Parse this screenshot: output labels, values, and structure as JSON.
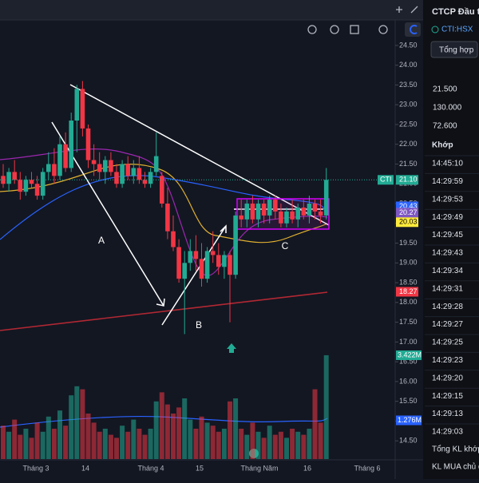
{
  "chart_data": {
    "type": "candlestick",
    "up_color": "#22ab94",
    "down_color": "#f23645",
    "candles": [
      [
        21.2,
        21.5,
        20.9,
        21.0
      ],
      [
        21.0,
        21.4,
        20.8,
        21.3
      ],
      [
        21.3,
        21.6,
        21.0,
        21.1
      ],
      [
        21.1,
        21.3,
        20.6,
        20.8
      ],
      [
        20.8,
        21.2,
        20.7,
        21.1
      ],
      [
        21.1,
        21.3,
        20.9,
        21.0
      ],
      [
        21.0,
        21.2,
        20.6,
        20.7
      ],
      [
        20.7,
        21.4,
        20.6,
        21.3
      ],
      [
        21.3,
        21.8,
        21.1,
        21.5
      ],
      [
        21.5,
        21.9,
        21.0,
        21.2
      ],
      [
        21.2,
        22.2,
        21.1,
        22.0
      ],
      [
        22.0,
        22.3,
        21.3,
        21.4
      ],
      [
        21.4,
        22.8,
        21.3,
        22.6
      ],
      [
        22.6,
        23.5,
        21.8,
        23.4
      ],
      [
        23.4,
        23.6,
        22.2,
        22.4
      ],
      [
        22.4,
        22.5,
        21.4,
        21.6
      ],
      [
        21.6,
        22.0,
        21.2,
        21.5
      ],
      [
        21.5,
        21.8,
        21.1,
        21.3
      ],
      [
        21.3,
        21.7,
        21.0,
        21.6
      ],
      [
        21.6,
        21.8,
        21.2,
        21.3
      ],
      [
        21.3,
        21.5,
        20.9,
        21.0
      ],
      [
        21.0,
        21.6,
        20.9,
        21.5
      ],
      [
        21.5,
        21.7,
        21.1,
        21.2
      ],
      [
        21.2,
        21.6,
        21.0,
        21.4
      ],
      [
        21.4,
        21.7,
        21.0,
        21.1
      ],
      [
        21.1,
        21.3,
        20.9,
        21.0
      ],
      [
        21.0,
        21.4,
        20.9,
        21.3
      ],
      [
        21.3,
        22.3,
        21.2,
        21.7
      ],
      [
        21.2,
        21.3,
        20.4,
        20.5
      ],
      [
        20.5,
        20.9,
        19.6,
        19.8
      ],
      [
        19.8,
        20.2,
        19.3,
        19.4
      ],
      [
        19.4,
        19.6,
        18.5,
        18.6
      ],
      [
        18.6,
        19.3,
        17.2,
        19.0
      ],
      [
        19.0,
        19.6,
        18.8,
        19.3
      ],
      [
        19.3,
        19.7,
        18.8,
        19.1
      ],
      [
        19.1,
        19.5,
        18.4,
        18.6
      ],
      [
        18.6,
        19.4,
        18.5,
        19.3
      ],
      [
        19.3,
        19.8,
        19.0,
        19.2
      ],
      [
        19.2,
        19.5,
        18.7,
        18.9
      ],
      [
        18.9,
        19.3,
        18.6,
        19.2
      ],
      [
        19.2,
        19.3,
        17.5,
        18.7
      ],
      [
        18.7,
        20.3,
        18.6,
        20.2
      ],
      [
        20.2,
        20.6,
        19.9,
        20.1
      ],
      [
        20.1,
        20.6,
        19.9,
        20.5
      ],
      [
        20.5,
        20.7,
        20.0,
        20.1
      ],
      [
        20.1,
        20.6,
        19.9,
        20.5
      ],
      [
        20.5,
        20.6,
        20.0,
        20.2
      ],
      [
        20.2,
        20.7,
        20.0,
        20.6
      ],
      [
        20.6,
        20.7,
        20.1,
        20.3
      ],
      [
        20.3,
        20.5,
        19.9,
        20.0
      ],
      [
        20.0,
        20.4,
        19.9,
        20.3
      ],
      [
        20.3,
        20.6,
        20.0,
        20.1
      ],
      [
        20.1,
        20.5,
        19.9,
        20.4
      ],
      [
        20.4,
        20.6,
        20.1,
        20.2
      ],
      [
        20.2,
        20.7,
        20.0,
        20.5
      ],
      [
        20.5,
        20.6,
        20.1,
        20.3
      ],
      [
        20.3,
        20.6,
        20.0,
        20.2
      ],
      [
        20.2,
        21.4,
        20.1,
        21.1
      ]
    ],
    "volume": [
      1.1,
      0.9,
      1.3,
      0.8,
      1.0,
      0.7,
      1.2,
      0.9,
      1.4,
      1.0,
      1.6,
      1.1,
      2.1,
      2.4,
      2.3,
      1.5,
      1.2,
      0.9,
      1.0,
      0.8,
      0.7,
      1.1,
      0.9,
      1.3,
      1.0,
      0.8,
      1.0,
      1.9,
      2.2,
      1.8,
      1.5,
      1.7,
      2.0,
      1.3,
      1.0,
      1.4,
      1.2,
      1.1,
      0.9,
      1.0,
      1.9,
      2.0,
      1.0,
      0.8,
      1.2,
      0.9,
      0.7,
      1.1,
      0.8,
      0.9,
      0.7,
      1.0,
      0.9,
      0.8,
      1.0,
      2.3,
      1.2,
      3.422
    ],
    "ylim": [
      14.04,
      24.74
    ],
    "yticks": [
      {
        "value": 24.5,
        "label": "24.50"
      },
      {
        "value": 24,
        "label": "24.00"
      },
      {
        "value": 23.5,
        "label": "23.50"
      },
      {
        "value": 23,
        "label": "23.00"
      },
      {
        "value": 22.5,
        "label": "22.50"
      },
      {
        "value": 22,
        "label": "22.00"
      },
      {
        "value": 21.5,
        "label": "21.50"
      },
      {
        "value": 21,
        "label": "21.00"
      },
      {
        "value": 20.5,
        "label": "20.50"
      },
      {
        "value": 20,
        "label": "20.00"
      },
      {
        "value": 19.5,
        "label": "19.50"
      },
      {
        "value": 19,
        "label": "19.00"
      },
      {
        "value": 18.5,
        "label": "18.50"
      },
      {
        "value": 18,
        "label": "18.00"
      },
      {
        "value": 17.5,
        "label": "17.50"
      },
      {
        "value": 17,
        "label": "17.00"
      },
      {
        "value": 16.5,
        "label": "16.50"
      },
      {
        "value": 16,
        "label": "16.00"
      },
      {
        "value": 15.5,
        "label": "15.50"
      },
      {
        "value": 15,
        "label": "15.00"
      },
      {
        "value": 14.5,
        "label": "14.50"
      }
    ],
    "xlabels": [
      "Tháng 3",
      "14",
      "Tháng 4",
      "15",
      "Tháng Năm",
      "16",
      "Tháng 6"
    ],
    "price_tags": [
      {
        "value": 21.1,
        "label": "21.10",
        "color": "#22ab94"
      },
      {
        "value": 20.43,
        "label": "20.43",
        "color": "#2962ff"
      },
      {
        "value": 20.27,
        "label": "20.27",
        "color": "#7e57c2"
      },
      {
        "value": 20.03,
        "label": "20.03",
        "color": "#ffeb3b"
      },
      {
        "value": 18.27,
        "label": "18.27",
        "color": "#f23645"
      }
    ],
    "symbol_tag": "CTI",
    "volume_tags": [
      {
        "value": 3.422,
        "label": "3.422M",
        "color": "#22ab94"
      },
      {
        "value": 1.276,
        "label": "1.276M",
        "color": "#2962ff"
      }
    ],
    "annotations": [
      "A",
      "B",
      "C"
    ]
  },
  "panel": {
    "title": "CTCP Đầu t",
    "symbol": "CTI:HSX",
    "tab": "Tổng hợp",
    "prices": [
      "21.500",
      "130.000",
      "72.600"
    ],
    "header": "Khớp",
    "times": [
      "14:45:10",
      "14:29:59",
      "14:29:53",
      "14:29:49",
      "14:29:45",
      "14:29:43",
      "14:29:34",
      "14:29:31",
      "14:29:28",
      "14:29:27",
      "14:29:25",
      "14:29:23",
      "14:29:20",
      "14:29:15",
      "14:29:13",
      "14:29:03"
    ],
    "footer": [
      "Tổng KL khớp",
      "KL MUA chủ đ"
    ]
  }
}
